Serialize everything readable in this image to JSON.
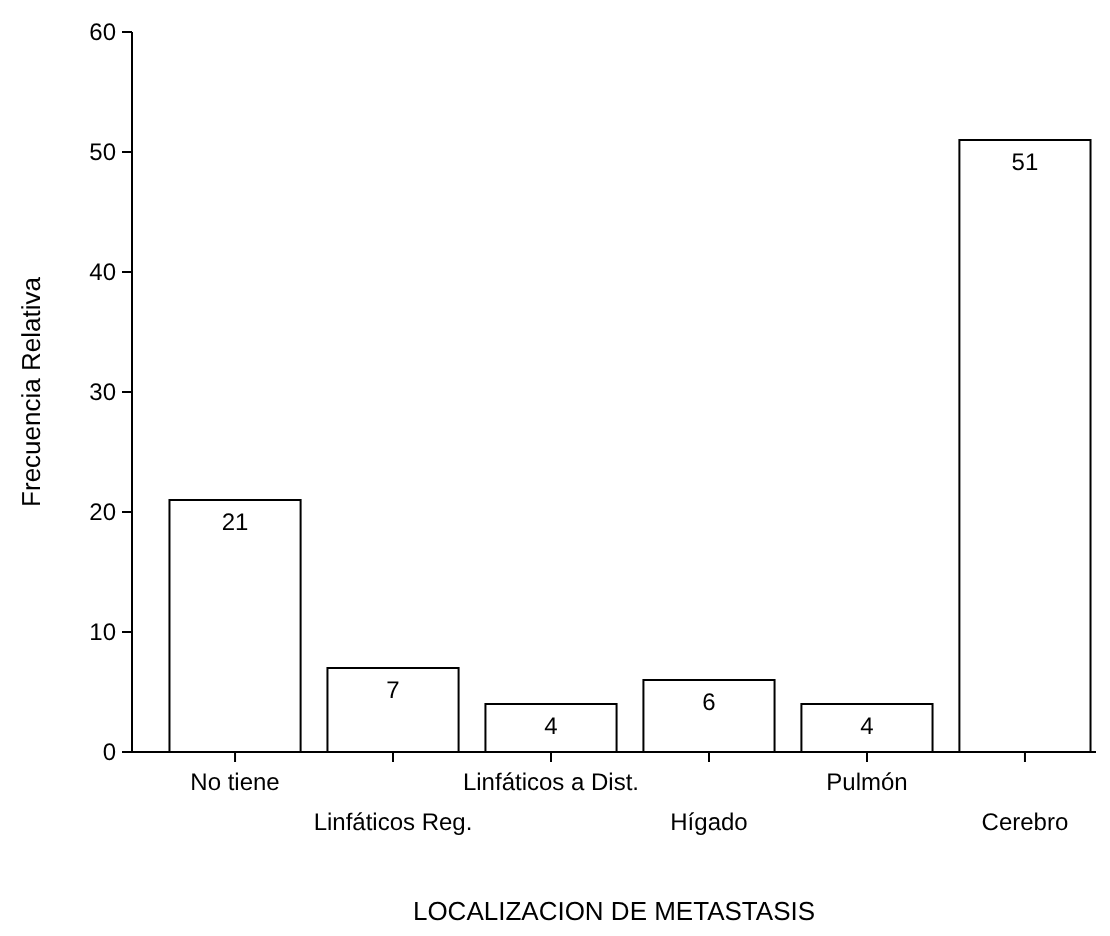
{
  "chart_data": {
    "type": "bar",
    "xlabel": "LOCALIZACION DE METASTASIS",
    "ylabel": "Frecuencia Relativa",
    "categories": [
      "No tiene",
      "Linfáticos Reg.",
      "Linfáticos a Dist.",
      "Hígado",
      "Pulmón",
      "Cerebro"
    ],
    "values": [
      21,
      7,
      4,
      6,
      4,
      51
    ],
    "color": "#ffffff",
    "ylim": [
      0,
      60
    ],
    "yticks": [
      0,
      10,
      20,
      30,
      40,
      50,
      60
    ],
    "data_labels": true,
    "grid": false
  }
}
